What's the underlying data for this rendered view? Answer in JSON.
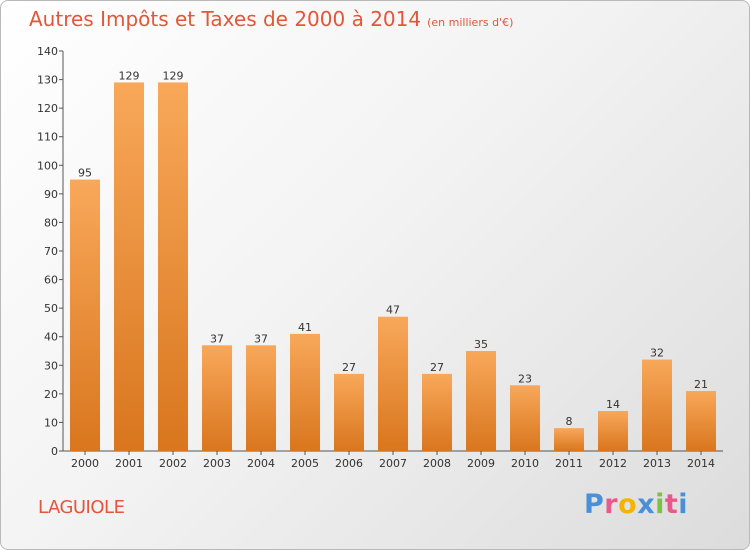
{
  "header": {
    "title": "Autres Impôts et Taxes de 2000 à 2014",
    "unit": "(en milliers d'€)"
  },
  "commune": "LAGUIOLE",
  "brand": {
    "letters": [
      "P",
      "r",
      "o",
      "x",
      "i",
      "t",
      "i"
    ],
    "colors": [
      "#4a90d9",
      "#e85a8c",
      "#f4b400",
      "#4a90d9",
      "#7cc242",
      "#e85a8c",
      "#4a90d9"
    ]
  },
  "colors": {
    "accent": "#e2563a",
    "bar_light": "#f8a85a",
    "bar_dark": "#d9761e"
  },
  "chart_data": {
    "type": "bar",
    "title": "Autres Impôts et Taxes de 2000 à 2014",
    "subtitle": "(en milliers d'€)",
    "categories": [
      "2000",
      "2001",
      "2002",
      "2003",
      "2004",
      "2005",
      "2006",
      "2007",
      "2008",
      "2009",
      "2010",
      "2011",
      "2012",
      "2013",
      "2014"
    ],
    "values": [
      95,
      129,
      129,
      37,
      37,
      41,
      27,
      47,
      27,
      35,
      23,
      8,
      14,
      32,
      21
    ],
    "ylim": [
      0,
      140
    ],
    "yticks": [
      0,
      10,
      20,
      30,
      40,
      50,
      60,
      70,
      80,
      90,
      100,
      110,
      120,
      130,
      140
    ],
    "grid": false,
    "xlabel": "",
    "ylabel": ""
  }
}
